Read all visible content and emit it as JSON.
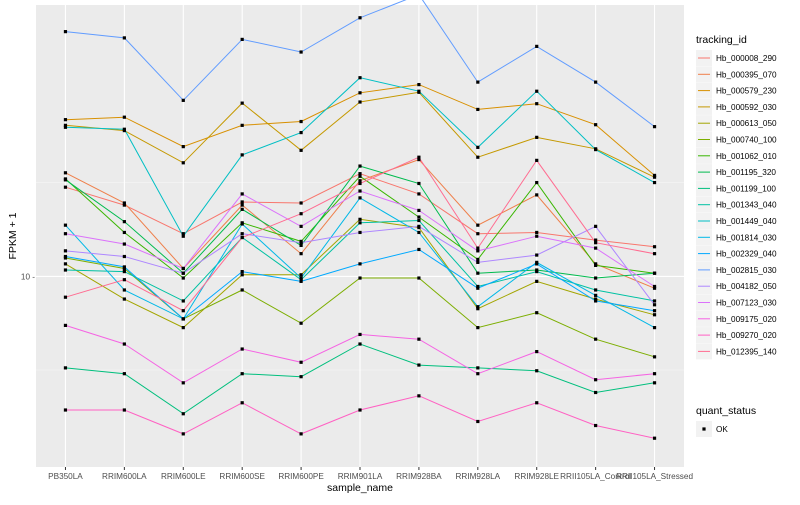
{
  "chart_data": {
    "type": "line",
    "title": "",
    "xlabel": "sample_name",
    "ylabel": "FPKM + 1",
    "y_scale": "log10",
    "ylim": [
      3.1,
      53
    ],
    "y_ticks": [
      {
        "value": 10,
        "label": "10 -"
      }
    ],
    "categories": [
      "PB350LA",
      "RRIM600LA",
      "RRIM600LE",
      "RRIM600SE",
      "RRIM600PE",
      "RRIM901LA",
      "RRIM928BA",
      "RRIM928LA",
      "RRIM928LE",
      "RRII105LA_Control",
      "RRII105LA_Stressed"
    ],
    "category_labels": [
      "PB350LA",
      "RRIM600LA",
      "RRIM600LE",
      "RRIM600SE",
      "RRIM600PE",
      "RRIM901LA",
      "RRIM928BA",
      "RRIM928LA",
      "RRIM928LE",
      "RRII105LA_Control",
      "RRII105LA_Stressed"
    ],
    "grid": true,
    "panel_background": "#ebebeb",
    "legend_position": "right",
    "legend": {
      "title": "tracking_id",
      "status_title": "quant_status",
      "status_entries": [
        {
          "label": "OK",
          "color": "#000000"
        }
      ]
    },
    "series": [
      {
        "name": "Hb_000008_290",
        "color": "#F8766D",
        "values": [
          17.3,
          15.5,
          13.0,
          15.8,
          15.7,
          18.8,
          16.6,
          13.0,
          13.1,
          12.5,
          12.0
        ]
      },
      {
        "name": "Hb_000395_070",
        "color": "#EF7F4A",
        "values": [
          18.9,
          15.7,
          10.5,
          15.5,
          11.5,
          18.0,
          20.5,
          13.7,
          16.5,
          10.8,
          9.3
        ]
      },
      {
        "name": "Hb_000579_230",
        "color": "#D89000",
        "values": [
          26.2,
          26.6,
          22.2,
          25.3,
          25.9,
          30.9,
          32.5,
          27.9,
          28.9,
          25.4,
          18.6
        ]
      },
      {
        "name": "Hb_000592_030",
        "color": "#C59900",
        "values": [
          25.3,
          24.5,
          20.1,
          29.0,
          21.7,
          29.2,
          31.0,
          20.8,
          23.5,
          21.9,
          18.4
        ]
      },
      {
        "name": "Hb_000613_050",
        "color": "#A3A500",
        "values": [
          10.8,
          8.7,
          7.3,
          10.1,
          10.1,
          14.2,
          13.5,
          8.2,
          9.7,
          8.7,
          7.9
        ]
      },
      {
        "name": "Hb_000740_100",
        "color": "#7CAE00",
        "values": [
          11.2,
          10.5,
          7.7,
          9.2,
          7.5,
          9.9,
          9.9,
          7.3,
          8.0,
          6.8,
          6.1
        ]
      },
      {
        "name": "Hb_001062_010",
        "color": "#39B600",
        "values": [
          18.2,
          13.1,
          9.9,
          13.9,
          12.4,
          18.5,
          14.4,
          11.1,
          17.8,
          10.7,
          10.2
        ]
      },
      {
        "name": "Hb_001195_320",
        "color": "#00BB4E",
        "values": [
          18.1,
          14.0,
          10.2,
          15.1,
          12.1,
          19.7,
          17.7,
          10.2,
          10.4,
          9.9,
          10.2
        ]
      },
      {
        "name": "Hb_001199_100",
        "color": "#00BF7D",
        "values": [
          5.7,
          5.5,
          4.3,
          5.5,
          5.4,
          6.6,
          5.8,
          5.7,
          5.6,
          4.9,
          5.2
        ]
      },
      {
        "name": "Hb_001343_040",
        "color": "#00C1A3",
        "values": [
          10.4,
          10.3,
          8.6,
          12.7,
          9.8,
          13.9,
          14.1,
          9.4,
          10.3,
          9.2,
          8.6
        ]
      },
      {
        "name": "Hb_001449_040",
        "color": "#00BFC4",
        "values": [
          25.0,
          24.7,
          12.8,
          21.1,
          24.2,
          33.9,
          31.2,
          22.1,
          31.2,
          21.8,
          17.8
        ]
      },
      {
        "name": "Hb_001814_030",
        "color": "#00B8E7",
        "values": [
          13.7,
          9.2,
          7.7,
          13.8,
          9.9,
          16.2,
          13.1,
          8.3,
          10.9,
          8.9,
          7.3
        ]
      },
      {
        "name": "Hb_002329_040",
        "color": "#00A9FF",
        "values": [
          11.3,
          10.6,
          7.7,
          10.3,
          9.7,
          10.8,
          11.8,
          9.3,
          10.8,
          8.6,
          8.1
        ]
      },
      {
        "name": "Hb_002815_030",
        "color": "#619CFF",
        "values": [
          45.0,
          43.3,
          29.5,
          42.9,
          39.7,
          49.0,
          56.5,
          33.0,
          41.1,
          33.0,
          25.1
        ]
      },
      {
        "name": "Hb_004182_050",
        "color": "#AE87FF",
        "values": [
          11.7,
          11.3,
          10.2,
          13.0,
          12.3,
          13.1,
          13.6,
          10.9,
          11.4,
          13.6,
          8.4
        ]
      },
      {
        "name": "Hb_007123_030",
        "color": "#DB72FB",
        "values": [
          13.0,
          12.2,
          10.5,
          16.6,
          13.6,
          16.9,
          15.0,
          11.7,
          12.8,
          11.9,
          9.4
        ]
      },
      {
        "name": "Hb_009175_020",
        "color": "#F564E3",
        "values": [
          7.4,
          6.6,
          5.2,
          6.4,
          5.9,
          7.0,
          6.8,
          5.5,
          6.3,
          5.3,
          5.5
        ]
      },
      {
        "name": "Hb_009270_020",
        "color": "#FF61C3",
        "values": [
          4.4,
          4.4,
          3.8,
          4.6,
          3.8,
          4.4,
          4.8,
          4.1,
          4.6,
          4.0,
          3.7
        ]
      },
      {
        "name": "Hb_012395_140",
        "color": "#FF6C91",
        "values": [
          8.8,
          9.8,
          8.1,
          12.7,
          14.7,
          17.7,
          20.8,
          11.9,
          20.4,
          12.3,
          11.5
        ]
      }
    ]
  }
}
